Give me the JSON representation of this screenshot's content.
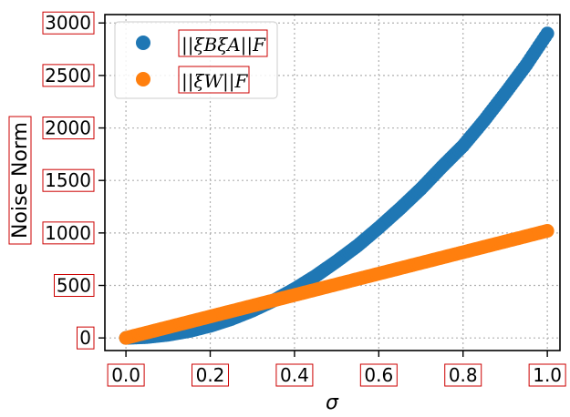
{
  "chart_data": {
    "type": "scatter",
    "xlabel": "σ",
    "ylabel": "Noise Norm",
    "xlim": [
      -0.05,
      1.03
    ],
    "ylim": [
      -120,
      3080
    ],
    "xticks": [
      "0.0",
      "0.2",
      "0.4",
      "0.6",
      "0.8",
      "1.0"
    ],
    "yticks": [
      "0",
      "500",
      "1000",
      "1500",
      "2000",
      "2500",
      "3000"
    ],
    "grid": true,
    "legend_position": "top-left",
    "series": [
      {
        "name": "||ξBξA||F",
        "color": "#1f77b4",
        "x": [
          0.0,
          0.05,
          0.1,
          0.15,
          0.2,
          0.25,
          0.3,
          0.35,
          0.4,
          0.45,
          0.5,
          0.55,
          0.6,
          0.65,
          0.7,
          0.75,
          0.8,
          0.85,
          0.9,
          0.95,
          1.0
        ],
        "y": [
          0,
          8,
          30,
          65,
          115,
          180,
          260,
          355,
          465,
          590,
          730,
          880,
          1050,
          1230,
          1420,
          1630,
          1830,
          2070,
          2330,
          2600,
          2900
        ]
      },
      {
        "name": "||ξW||F",
        "color": "#ff7f0e",
        "x": [
          0.0,
          0.05,
          0.1,
          0.15,
          0.2,
          0.25,
          0.3,
          0.35,
          0.4,
          0.45,
          0.5,
          0.55,
          0.6,
          0.65,
          0.7,
          0.75,
          0.8,
          0.85,
          0.9,
          0.95,
          1.0
        ],
        "y": [
          0,
          51,
          102,
          153,
          204,
          255,
          306,
          357,
          408,
          459,
          510,
          561,
          612,
          663,
          714,
          765,
          816,
          867,
          918,
          969,
          1020
        ]
      }
    ]
  }
}
